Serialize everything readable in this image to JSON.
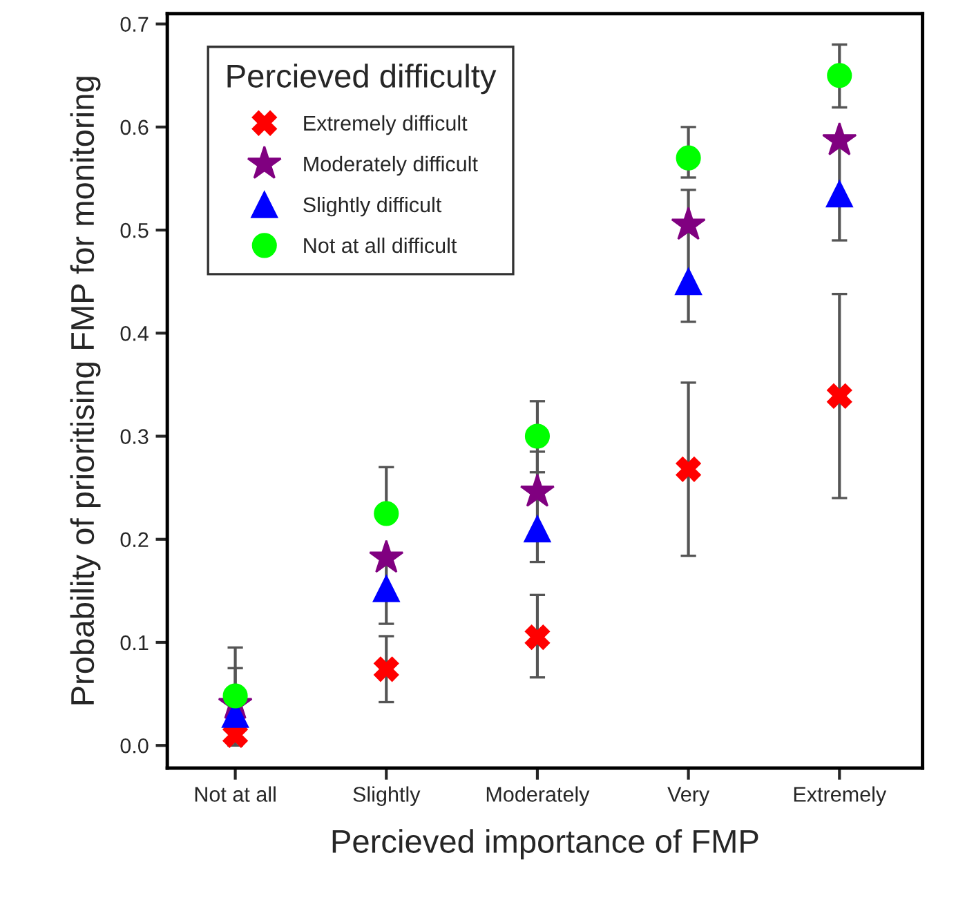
{
  "chart_data": {
    "type": "scatter",
    "xlabel": "Percieved importance of FMP",
    "ylabel": "Probability of prioritising FMP for monitoring",
    "legend_title": "Percieved difficulty",
    "legend": "top left",
    "grid": false,
    "categories": [
      "Not at all",
      "Slightly",
      "Moderately",
      "Very",
      "Extremely"
    ],
    "ylim": [
      -0.022,
      0.71
    ],
    "yticks": [
      {
        "value": 0,
        "label": "0.0"
      },
      0.1,
      0.2,
      0.3,
      0.4,
      0.5,
      0.6,
      0.7
    ],
    "series": [
      {
        "name": "Extremely difficult",
        "color": "#ff0000",
        "marker": "cross",
        "values": [
          0.01,
          0.074,
          0.105,
          0.268,
          0.339
        ],
        "errors": [
          null,
          [
            0.042,
            0.106
          ],
          [
            0.066,
            0.146
          ],
          [
            0.184,
            0.352
          ],
          [
            0.24,
            0.438
          ]
        ]
      },
      {
        "name": "Moderately difficult",
        "color": "#800080",
        "marker": "star",
        "values": [
          0.04,
          0.182,
          0.246,
          0.505,
          0.587
        ],
        "errors": [
          [
            0.0,
            0.075
          ],
          null,
          null,
          null,
          null
        ]
      },
      {
        "name": "Slightly difficult",
        "color": "#0000ff",
        "marker": "triangle",
        "values": [
          0.03,
          0.152,
          0.21,
          0.45,
          0.535
        ],
        "errors": [
          null,
          [
            0.118,
            0.185
          ],
          [
            0.178,
            0.285
          ],
          [
            0.411,
            0.539
          ],
          [
            0.49,
            0.58
          ]
        ]
      },
      {
        "name": "Not at all difficult",
        "color": "#00ff00",
        "marker": "circle",
        "values": [
          0.048,
          0.225,
          0.3,
          0.57,
          0.65
        ],
        "errors": [
          [
            0.0,
            0.095
          ],
          [
            0.225,
            0.27
          ],
          [
            0.265,
            0.334
          ],
          [
            0.551,
            0.6
          ],
          [
            0.619,
            0.68
          ]
        ]
      }
    ]
  }
}
